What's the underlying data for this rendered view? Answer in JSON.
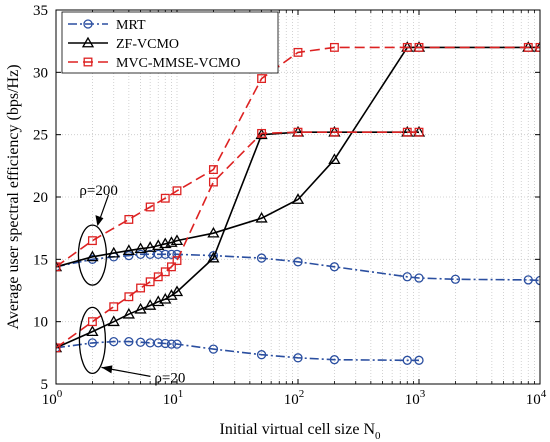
{
  "chart_data": {
    "type": "line",
    "title": "",
    "xlabel": "Initial virtual cell size N",
    "xlabel_sub": "0",
    "ylabel": "Average user spectral efficiency (bps/Hz)",
    "xscale": "log",
    "xlim": [
      1,
      10000
    ],
    "ylim": [
      5,
      35
    ],
    "grid": "dotted",
    "legend_position": "top-left",
    "x_ticks": [
      {
        "base": "10",
        "exp": "0",
        "value": 1
      },
      {
        "base": "10",
        "exp": "1",
        "value": 10
      },
      {
        "base": "10",
        "exp": "2",
        "value": 100
      },
      {
        "base": "10",
        "exp": "3",
        "value": 1000
      },
      {
        "base": "10",
        "exp": "4",
        "value": 10000
      }
    ],
    "y_ticks": [
      "5",
      "10",
      "15",
      "20",
      "25",
      "30",
      "35"
    ],
    "series": [
      {
        "name": "MRT",
        "color": "#2b4fa0",
        "marker": "circle",
        "dash": "9 3 2 3",
        "curves": [
          {
            "x": [
              1,
              2,
              3,
              4,
              5,
              6,
              7,
              8,
              9,
              10,
              20,
              50,
              100,
              200,
              800,
              1000,
              2000,
              8000,
              10000
            ],
            "y": [
              14.4,
              15.0,
              15.2,
              15.3,
              15.4,
              15.4,
              15.4,
              15.4,
              15.4,
              15.4,
              15.3,
              15.1,
              14.8,
              14.4,
              13.6,
              13.5,
              13.4,
              13.35,
              13.3
            ]
          },
          {
            "x": [
              1,
              2,
              3,
              4,
              5,
              6,
              7,
              8,
              9,
              10,
              20,
              50,
              100,
              200,
              800,
              1000
            ],
            "y": [
              7.9,
              8.3,
              8.4,
              8.4,
              8.35,
              8.3,
              8.3,
              8.25,
              8.2,
              8.2,
              7.8,
              7.35,
              7.1,
              6.95,
              6.9,
              6.9
            ]
          }
        ]
      },
      {
        "name": "ZF-VCMO",
        "color": "#000000",
        "marker": "triangle",
        "dash": "",
        "curves": [
          {
            "x": [
              1,
              2,
              3,
              4,
              5,
              6,
              7,
              8,
              9,
              10,
              20,
              50,
              100,
              200,
              800,
              1000,
              8000,
              10000
            ],
            "y": [
              14.4,
              15.2,
              15.5,
              15.7,
              15.85,
              15.95,
              16.1,
              16.25,
              16.35,
              16.5,
              17.1,
              18.3,
              19.8,
              23.0,
              32.0,
              32.0,
              32.0,
              32.0
            ]
          },
          {
            "x": [
              1,
              2,
              3,
              4,
              5,
              6,
              7,
              8,
              9,
              10,
              20,
              50,
              100,
              200,
              800,
              1000
            ],
            "y": [
              7.9,
              9.2,
              10.0,
              10.6,
              11.0,
              11.3,
              11.6,
              11.8,
              12.1,
              12.4,
              15.1,
              25.0,
              25.2,
              25.2,
              25.2,
              25.2
            ]
          }
        ]
      },
      {
        "name": "MVC-MMSE-VCMO",
        "color": "#dd2222",
        "marker": "square",
        "dash": "10 5",
        "curves": [
          {
            "x": [
              1,
              2,
              4,
              6,
              8,
              10,
              20,
              50,
              100,
              200,
              800,
              1000,
              8000,
              10000
            ],
            "y": [
              14.4,
              16.5,
              18.2,
              19.2,
              19.9,
              20.5,
              22.2,
              29.5,
              31.6,
              32.0,
              32.0,
              32.0,
              32.0,
              32.0
            ]
          },
          {
            "x": [
              1,
              2,
              3,
              4,
              5,
              6,
              7,
              8,
              9,
              10,
              20,
              50,
              100,
              200,
              800,
              1000
            ],
            "y": [
              7.9,
              10.0,
              11.2,
              12.0,
              12.7,
              13.2,
              13.6,
              14.0,
              14.4,
              14.9,
              21.2,
              25.1,
              25.2,
              25.2,
              25.2,
              25.2
            ]
          }
        ]
      }
    ],
    "annotations": [
      {
        "text": "ρ=200",
        "x": 2,
        "y": 15.5
      },
      {
        "text": "ρ=20",
        "x": 2,
        "y": 8.5
      }
    ]
  }
}
